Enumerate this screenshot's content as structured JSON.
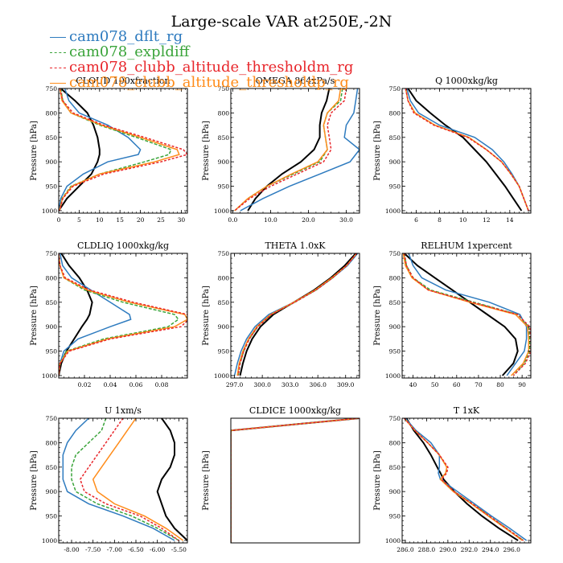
{
  "page_title": "Large-scale VAR at250E,-2N",
  "legend": [
    {
      "label": "cam078_dflt_rg",
      "color": "#2e7bbf",
      "dash": false
    },
    {
      "label": "cam078_expldiff",
      "color": "#3aa43a",
      "dash": true
    },
    {
      "label": "cam078_clubb_altitude_thresholdm_rg",
      "color": "#e8262b",
      "dash": true
    },
    {
      "label": "cam078_clubb_altitude_thresholdp_rg",
      "color": "#ff8c1a",
      "dash": false
    }
  ],
  "extra_series_color": "#000000",
  "chart_data": [
    {
      "type": "line",
      "title": "CLOUD 100xfraction",
      "ylabel": "Pressure [hPa]",
      "xlim": [
        0,
        31.5
      ],
      "ylim": [
        1005,
        750
      ],
      "xticks": [
        0,
        5,
        10,
        15,
        20,
        25,
        30
      ],
      "xtick_labels": [
        "0",
        "5",
        "10",
        "15",
        "20",
        "25",
        "30"
      ],
      "yticks": [
        750,
        800,
        850,
        900,
        950,
        1000
      ],
      "ytick_labels": [
        "750",
        "800",
        "850",
        "900",
        "950",
        "1000"
      ],
      "pressure": [
        750,
        775,
        800,
        825,
        850,
        875,
        885,
        900,
        925,
        950,
        975,
        1000
      ],
      "series": [
        {
          "values": [
            1.5,
            2.5,
            5,
            12,
            17,
            20,
            19.5,
            12,
            6,
            2,
            0.5,
            0
          ]
        },
        {
          "values": [
            0.5,
            1,
            3,
            10,
            19,
            27.5,
            27,
            21,
            10,
            3,
            0.8,
            0.2
          ]
        },
        {
          "values": [
            0.3,
            1,
            3.5,
            11,
            21,
            30.5,
            31.5,
            25,
            11,
            3.5,
            1,
            0.2
          ]
        },
        {
          "values": [
            0.3,
            0.8,
            3,
            10.5,
            20,
            29,
            29.5,
            23.5,
            10,
            3.2,
            0.9,
            0.2
          ]
        },
        {
          "values": [
            0.5,
            4,
            7,
            8.5,
            9.5,
            10,
            10,
            9.5,
            8,
            5,
            2,
            0
          ]
        }
      ]
    },
    {
      "type": "line",
      "title": "OMEGA 864xPa/s",
      "ylabel": "Pressure [hPa]",
      "xlim": [
        -0.5,
        33.5
      ],
      "ylim": [
        1005,
        750
      ],
      "xticks": [
        0,
        10,
        20,
        30
      ],
      "xtick_labels": [
        "0.0",
        "10.0",
        "20.0",
        "30.0"
      ],
      "yticks": [
        750,
        800,
        850,
        900,
        950,
        1000
      ],
      "ytick_labels": [
        "750",
        "800",
        "850",
        "900",
        "950",
        "1000"
      ],
      "pressure": [
        750,
        775,
        800,
        825,
        850,
        875,
        900,
        925,
        950,
        975,
        1000
      ],
      "series": [
        {
          "values": [
            33,
            32.5,
            32,
            30,
            29.5,
            33.5,
            31,
            23,
            15,
            8,
            2
          ]
        },
        {
          "values": [
            29,
            28.5,
            25,
            24,
            24.5,
            25,
            23,
            16,
            9,
            4,
            0.5
          ]
        },
        {
          "values": [
            30,
            29.5,
            26,
            25,
            25.5,
            26,
            24,
            17,
            10,
            4.5,
            0.5
          ]
        },
        {
          "values": [
            28.5,
            28,
            25,
            24,
            24.5,
            25,
            22.5,
            15.5,
            9,
            4,
            0.5
          ]
        },
        {
          "values": [
            25.5,
            24.8,
            23.5,
            23,
            23,
            21.5,
            18,
            13,
            9,
            6,
            4
          ]
        }
      ]
    },
    {
      "type": "line",
      "title": "Q 1000xkg/kg",
      "ylabel": "Pressure [hPa]",
      "xlim": [
        4.8,
        15.8
      ],
      "ylim": [
        1005,
        750
      ],
      "xticks": [
        6,
        8,
        10,
        12,
        14
      ],
      "xtick_labels": [
        "6",
        "8",
        "10",
        "12",
        "14"
      ],
      "yticks": [
        750,
        800,
        850,
        900,
        950,
        1000
      ],
      "ytick_labels": [
        "750",
        "800",
        "850",
        "900",
        "950",
        "1000"
      ],
      "pressure": [
        750,
        775,
        800,
        825,
        850,
        875,
        900,
        925,
        950,
        975,
        1000
      ],
      "series": [
        {
          "values": [
            5.2,
            5.5,
            6.2,
            8,
            11,
            12.5,
            13.5,
            14.2,
            14.8,
            15.2,
            15.6
          ]
        },
        {
          "values": [
            5.1,
            5.3,
            5.9,
            7.6,
            10.5,
            12,
            13.3,
            14.1,
            14.8,
            15.2,
            15.6
          ]
        },
        {
          "values": [
            5.1,
            5.3,
            5.8,
            7.5,
            10.4,
            12,
            13.3,
            14.1,
            14.8,
            15.2,
            15.6
          ]
        },
        {
          "values": [
            5.1,
            5.3,
            5.9,
            7.6,
            10.5,
            12,
            13.3,
            14.1,
            14.8,
            15.2,
            15.6
          ]
        },
        {
          "values": [
            5.3,
            6,
            7.2,
            8.5,
            10,
            11,
            12,
            12.8,
            13.6,
            14.3,
            15
          ]
        }
      ]
    },
    {
      "type": "line",
      "title": "CLDLIQ 1000xkg/kg",
      "ylabel": "Pressure [hPa]",
      "xlim": [
        0,
        0.1
      ],
      "ylim": [
        1005,
        750
      ],
      "xticks": [
        0.02,
        0.04,
        0.06,
        0.08
      ],
      "xtick_labels": [
        "0.02",
        "0.04",
        "0.06",
        "0.08"
      ],
      "yticks": [
        750,
        800,
        850,
        900,
        950,
        1000
      ],
      "ytick_labels": [
        "750",
        "800",
        "850",
        "900",
        "950",
        "1000"
      ],
      "pressure": [
        750,
        775,
        800,
        825,
        850,
        875,
        885,
        900,
        925,
        950,
        975,
        1000
      ],
      "series": [
        {
          "values": [
            0.001,
            0.003,
            0.01,
            0.025,
            0.04,
            0.055,
            0.056,
            0.04,
            0.015,
            0.004,
            0.001,
            0
          ]
        },
        {
          "values": [
            0,
            0.001,
            0.004,
            0.02,
            0.05,
            0.09,
            0.093,
            0.085,
            0.035,
            0.006,
            0.001,
            0
          ]
        },
        {
          "values": [
            0,
            0.001,
            0.005,
            0.024,
            0.058,
            0.1,
            0.101,
            0.095,
            0.04,
            0.008,
            0.001,
            0
          ]
        },
        {
          "values": [
            0,
            0.001,
            0.004,
            0.022,
            0.055,
            0.098,
            0.1,
            0.09,
            0.038,
            0.007,
            0.001,
            0
          ]
        },
        {
          "values": [
            0.002,
            0.008,
            0.016,
            0.022,
            0.026,
            0.024,
            0.022,
            0.018,
            0.012,
            0.006,
            0.002,
            0
          ]
        }
      ]
    },
    {
      "type": "line",
      "title": "THETA 1.0xK",
      "ylabel": "Pressure [hPa]",
      "xlim": [
        296.6,
        310.5
      ],
      "ylim": [
        1005,
        750
      ],
      "xticks": [
        297,
        300,
        303,
        306,
        309
      ],
      "xtick_labels": [
        "297.0",
        "300.0",
        "303.0",
        "306.0",
        "309.0"
      ],
      "yticks": [
        750,
        800,
        850,
        900,
        950,
        1000
      ],
      "ytick_labels": [
        "750",
        "800",
        "850",
        "900",
        "950",
        "1000"
      ],
      "pressure": [
        750,
        775,
        800,
        825,
        850,
        875,
        900,
        925,
        950,
        975,
        1000
      ],
      "series": [
        {
          "values": [
            310.3,
            309.2,
            307.6,
            305.8,
            303.4,
            300.7,
            299.2,
            298.3,
            297.7,
            297.3,
            297.0
          ]
        },
        {
          "values": [
            310.2,
            309.1,
            307.6,
            305.8,
            303.5,
            301,
            299.5,
            298.6,
            298,
            297.6,
            297.4
          ]
        },
        {
          "values": [
            310.2,
            309.1,
            307.6,
            305.8,
            303.5,
            301,
            299.5,
            298.6,
            298,
            297.6,
            297.4
          ]
        },
        {
          "values": [
            310.2,
            309.1,
            307.5,
            305.7,
            303.4,
            300.9,
            299.4,
            298.5,
            297.9,
            297.5,
            297.3
          ]
        },
        {
          "values": [
            310.1,
            308.9,
            307.4,
            305.6,
            303.4,
            301.2,
            299.8,
            298.9,
            298.3,
            297.9,
            297.6
          ]
        }
      ]
    },
    {
      "type": "line",
      "title": "RELHUM 1xpercent",
      "ylabel": "Pressure [hPa]",
      "xlim": [
        35,
        94
      ],
      "ylim": [
        1005,
        750
      ],
      "xticks": [
        40,
        50,
        60,
        70,
        80,
        90
      ],
      "xtick_labels": [
        "40",
        "50",
        "60",
        "70",
        "80",
        "90"
      ],
      "yticks": [
        750,
        800,
        850,
        900,
        950,
        1000
      ],
      "ytick_labels": [
        "750",
        "800",
        "850",
        "900",
        "950",
        "1000"
      ],
      "pressure": [
        750,
        775,
        800,
        825,
        850,
        875,
        900,
        925,
        950,
        975,
        1000
      ],
      "series": [
        {
          "values": [
            38,
            40,
            44,
            55,
            75,
            89,
            92,
            92,
            91,
            87,
            83
          ]
        },
        {
          "values": [
            36,
            37,
            40,
            48,
            68,
            88,
            93,
            93.5,
            93.5,
            91,
            86
          ]
        },
        {
          "values": [
            36,
            37,
            40,
            47,
            67,
            88,
            93.5,
            94,
            94,
            91.5,
            86
          ]
        },
        {
          "values": [
            35.5,
            36.5,
            39.5,
            47,
            66,
            87,
            92.5,
            93,
            93,
            90.5,
            85
          ]
        },
        {
          "values": [
            36,
            42,
            50,
            58,
            66,
            74,
            82,
            87,
            88,
            86,
            81
          ]
        }
      ]
    },
    {
      "type": "line",
      "title": "U 1xm/s",
      "ylabel": "Pressure [hPa]",
      "xlim": [
        -8.3,
        -5.3
      ],
      "ylim": [
        1005,
        750
      ],
      "xticks": [
        -8,
        -7.5,
        -7,
        -6.5,
        -6,
        -5.5
      ],
      "xtick_labels": [
        "-8.00",
        "-7.50",
        "-7.00",
        "-6.50",
        "-6.00",
        "-5.50"
      ],
      "yticks": [
        750,
        800,
        850,
        900,
        950,
        1000
      ],
      "ytick_labels": [
        "750",
        "800",
        "850",
        "900",
        "950",
        "1000"
      ],
      "pressure": [
        750,
        775,
        800,
        825,
        850,
        875,
        900,
        925,
        950,
        975,
        1000
      ],
      "series": [
        {
          "values": [
            -7.6,
            -7.9,
            -8.1,
            -8.2,
            -8.2,
            -8.2,
            -8.1,
            -7.6,
            -6.8,
            -6.1,
            -5.6
          ]
        },
        {
          "values": [
            -7.2,
            -7.3,
            -7.6,
            -7.9,
            -8,
            -8,
            -7.9,
            -7.4,
            -6.6,
            -6,
            -5.5
          ]
        },
        {
          "values": [
            -6.8,
            -7,
            -7.2,
            -7.4,
            -7.6,
            -7.8,
            -7.7,
            -7.2,
            -6.4,
            -5.9,
            -5.5
          ]
        },
        {
          "values": [
            -6.5,
            -6.7,
            -6.9,
            -7.1,
            -7.3,
            -7.5,
            -7.4,
            -7,
            -6.3,
            -5.8,
            -5.4
          ]
        },
        {
          "values": [
            -5.9,
            -5.7,
            -5.6,
            -5.6,
            -5.7,
            -5.9,
            -6,
            -5.9,
            -5.8,
            -5.6,
            -5.3
          ]
        }
      ]
    },
    {
      "type": "line",
      "title": "CLDICE 1000xkg/kg",
      "ylabel": "Pressure [hPa]",
      "xlim": [
        0,
        1
      ],
      "ylim": [
        1005,
        750
      ],
      "xticks": [],
      "xtick_labels": [],
      "yticks": [],
      "ytick_labels": [],
      "pressure": [
        750,
        775,
        1005
      ],
      "series": [
        {
          "values": [
            1,
            0,
            0
          ]
        },
        {
          "values": [
            1,
            0,
            0
          ]
        },
        {
          "values": [
            1,
            0,
            0
          ]
        },
        {
          "values": [
            1,
            0,
            0
          ]
        },
        {
          "values": [
            1,
            0,
            0
          ]
        }
      ]
    },
    {
      "type": "line",
      "title": "T 1xK",
      "ylabel": "Pressure [hPa]",
      "xlim": [
        285.7,
        297.8
      ],
      "ylim": [
        1005,
        750
      ],
      "xticks": [
        286,
        288,
        290,
        292,
        294,
        296
      ],
      "xtick_labels": [
        "286.0",
        "288.0",
        "290.0",
        "292.0",
        "294.0",
        "296.0"
      ],
      "yticks": [
        750,
        800,
        850,
        900,
        950,
        1000
      ],
      "ytick_labels": [
        "750",
        "800",
        "850",
        "900",
        "950",
        "1000"
      ],
      "pressure": [
        750,
        775,
        800,
        825,
        850,
        862,
        875,
        900,
        925,
        950,
        975,
        1000
      ],
      "series": [
        {
          "values": [
            286,
            287,
            288.4,
            289.2,
            289.2,
            289.1,
            289.3,
            290.9,
            292.5,
            294.1,
            295.8,
            297.4
          ]
        },
        {
          "values": [
            285.9,
            286.9,
            288.1,
            289.2,
            289.9,
            289.8,
            289.3,
            290.6,
            292.3,
            293.9,
            295.5,
            297.1
          ]
        },
        {
          "values": [
            285.9,
            286.9,
            288.1,
            289.2,
            290,
            289.9,
            289.4,
            290.6,
            292.3,
            293.9,
            295.5,
            297.1
          ]
        },
        {
          "values": [
            285.9,
            286.9,
            288.1,
            289.2,
            289.9,
            289.8,
            289.3,
            290.5,
            292.2,
            293.8,
            295.4,
            297
          ]
        },
        {
          "values": [
            286.1,
            286.8,
            287.7,
            288.4,
            289,
            289.3,
            289.6,
            290.6,
            291.8,
            293.2,
            294.8,
            296.6
          ]
        }
      ]
    }
  ]
}
